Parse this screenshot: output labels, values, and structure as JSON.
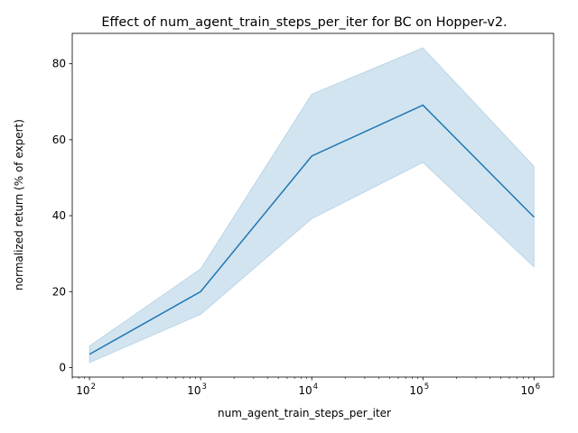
{
  "chart_data": {
    "type": "line",
    "title": "Effect of num_agent_train_steps_per_iter for BC on Hopper-v2.",
    "xlabel": "num_agent_train_steps_per_iter",
    "ylabel": "normalized return (% of expert)",
    "x_scale": "log",
    "xlim": [
      70,
      1500000
    ],
    "ylim": [
      -2.5,
      88
    ],
    "grid": false,
    "x_ticks": [
      {
        "value": 100,
        "base": "10",
        "exp": "2"
      },
      {
        "value": 1000,
        "base": "10",
        "exp": "3"
      },
      {
        "value": 10000,
        "base": "10",
        "exp": "4"
      },
      {
        "value": 100000,
        "base": "10",
        "exp": "5"
      },
      {
        "value": 1000000,
        "base": "10",
        "exp": "6"
      }
    ],
    "y_ticks": [
      0,
      20,
      40,
      60,
      80
    ],
    "series": [
      {
        "x": [
          100,
          1000,
          10000,
          100000,
          1000000
        ],
        "values": [
          3.5,
          20.0,
          55.7,
          69.1,
          39.6
        ],
        "lower": [
          1.3,
          14.0,
          39.2,
          54.0,
          26.5
        ],
        "upper": [
          5.7,
          26.0,
          72.0,
          84.2,
          53.0
        ],
        "color": "#1f77b4"
      }
    ]
  }
}
